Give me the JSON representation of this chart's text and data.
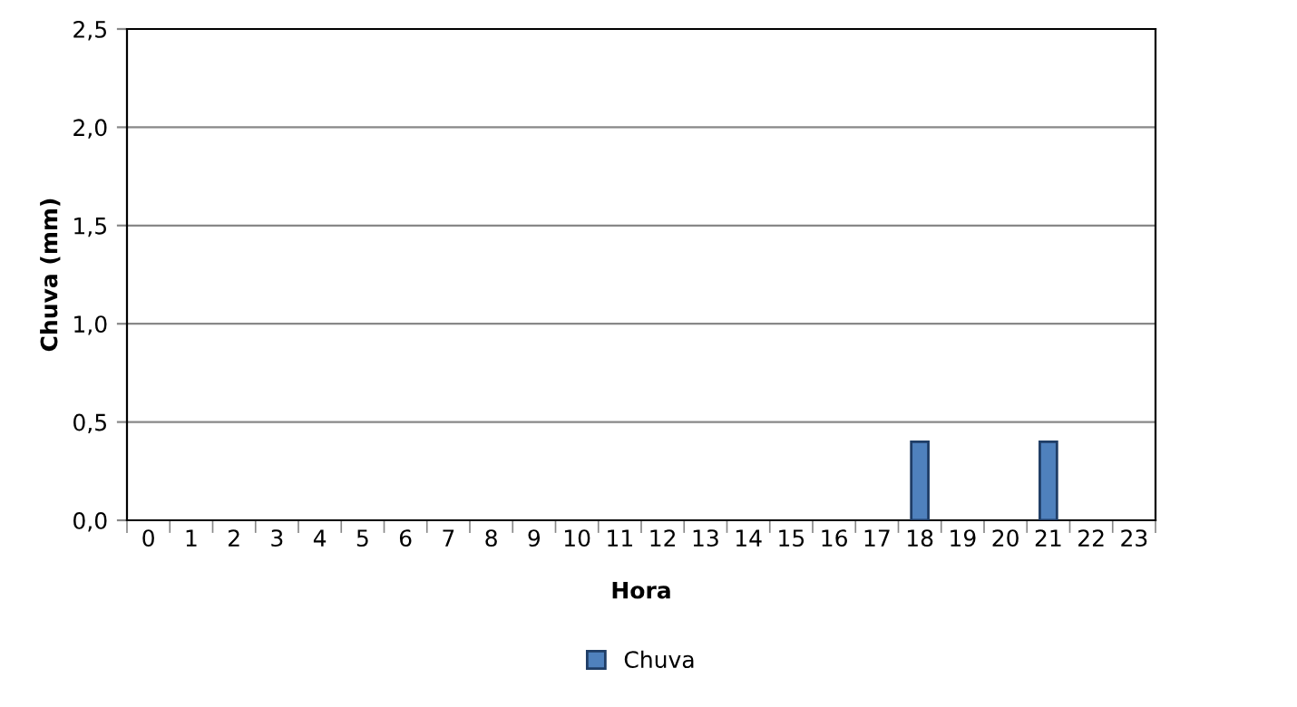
{
  "chart_data": {
    "type": "bar",
    "xlabel": "Hora",
    "ylabel": "Chuva (mm)",
    "categories": [
      "0",
      "1",
      "2",
      "3",
      "4",
      "5",
      "6",
      "7",
      "8",
      "9",
      "10",
      "11",
      "12",
      "13",
      "14",
      "15",
      "16",
      "17",
      "18",
      "19",
      "20",
      "21",
      "22",
      "23"
    ],
    "series": [
      {
        "name": "Chuva",
        "color": "#4f81bd",
        "values": [
          0,
          0,
          0,
          0,
          0,
          0,
          0,
          0,
          0,
          0,
          0,
          0,
          0,
          0,
          0,
          0,
          0,
          0,
          0.4,
          0,
          0,
          0.4,
          0,
          0
        ]
      }
    ],
    "ylim": [
      0,
      2.5
    ],
    "yticks": [
      {
        "value": 0,
        "label": "0,0"
      },
      {
        "value": 0.5,
        "label": "0,5"
      },
      {
        "value": 1,
        "label": "1,0"
      },
      {
        "value": 1.5,
        "label": "1,5"
      },
      {
        "value": 2,
        "label": "2,0"
      },
      {
        "value": 2.5,
        "label": "2,5"
      }
    ],
    "grid": "y",
    "legend": "bottom"
  }
}
